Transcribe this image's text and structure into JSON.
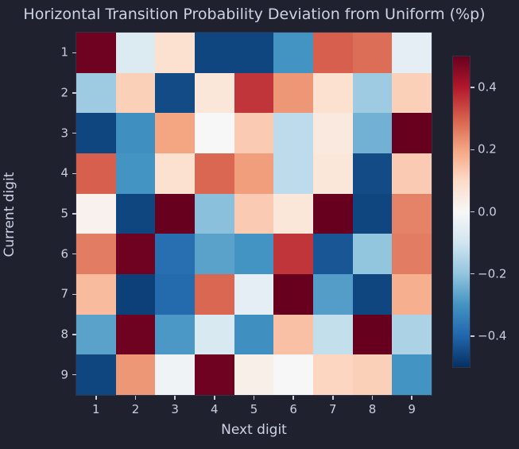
{
  "figure": {
    "background_color": "#20212f",
    "text_color": "#cdd3e6",
    "tick_color": "#c9cee0",
    "spine_color": "#2e3346"
  },
  "chart_data": {
    "type": "heatmap",
    "title": "Horizontal Transition Probability Deviation from Uniform (%p)",
    "xlabel": "Next digit",
    "ylabel": "Current digit",
    "x_ticklabels": [
      "1",
      "2",
      "3",
      "4",
      "5",
      "6",
      "7",
      "8",
      "9"
    ],
    "y_ticklabels": [
      "1",
      "2",
      "3",
      "4",
      "5",
      "6",
      "7",
      "8",
      "9"
    ],
    "vmin": -0.5,
    "vmax": 0.5,
    "grid": false,
    "values": [
      [
        0.49,
        -0.07,
        0.08,
        -0.46,
        -0.46,
        -0.3,
        0.3,
        0.28,
        -0.05
      ],
      [
        -0.18,
        0.12,
        -0.45,
        0.06,
        0.36,
        0.22,
        0.08,
        -0.18,
        0.12
      ],
      [
        -0.46,
        -0.31,
        0.2,
        0.0,
        0.13,
        -0.13,
        0.05,
        -0.24,
        0.5
      ],
      [
        0.3,
        -0.3,
        0.08,
        0.29,
        0.21,
        -0.13,
        0.06,
        -0.45,
        0.13
      ],
      [
        0.02,
        -0.46,
        0.5,
        -0.21,
        0.13,
        0.06,
        0.5,
        -0.46,
        0.25
      ],
      [
        0.26,
        0.49,
        -0.38,
        -0.27,
        -0.3,
        0.36,
        -0.43,
        -0.2,
        0.26
      ],
      [
        0.16,
        -0.47,
        -0.39,
        0.29,
        -0.05,
        0.5,
        -0.28,
        -0.46,
        0.18
      ],
      [
        -0.27,
        0.49,
        -0.29,
        -0.08,
        -0.31,
        0.15,
        -0.12,
        0.5,
        -0.16
      ],
      [
        -0.46,
        0.22,
        -0.02,
        0.49,
        0.03,
        0.0,
        0.11,
        0.12,
        -0.3
      ]
    ],
    "colormap": {
      "name": "RdBu_r",
      "stops": [
        "#053061",
        "#2166ac",
        "#4393c3",
        "#92c5de",
        "#d1e5f0",
        "#f7f7f7",
        "#fddbc7",
        "#f4a582",
        "#d6604d",
        "#b2182b",
        "#67001f"
      ]
    },
    "colorbar": {
      "position": "right",
      "ticks": [
        0.4,
        0.2,
        0.0,
        -0.2,
        -0.4
      ],
      "tick_labels": [
        "0.4",
        "0.2",
        "0.0",
        "−0.2",
        "−0.4"
      ]
    }
  }
}
